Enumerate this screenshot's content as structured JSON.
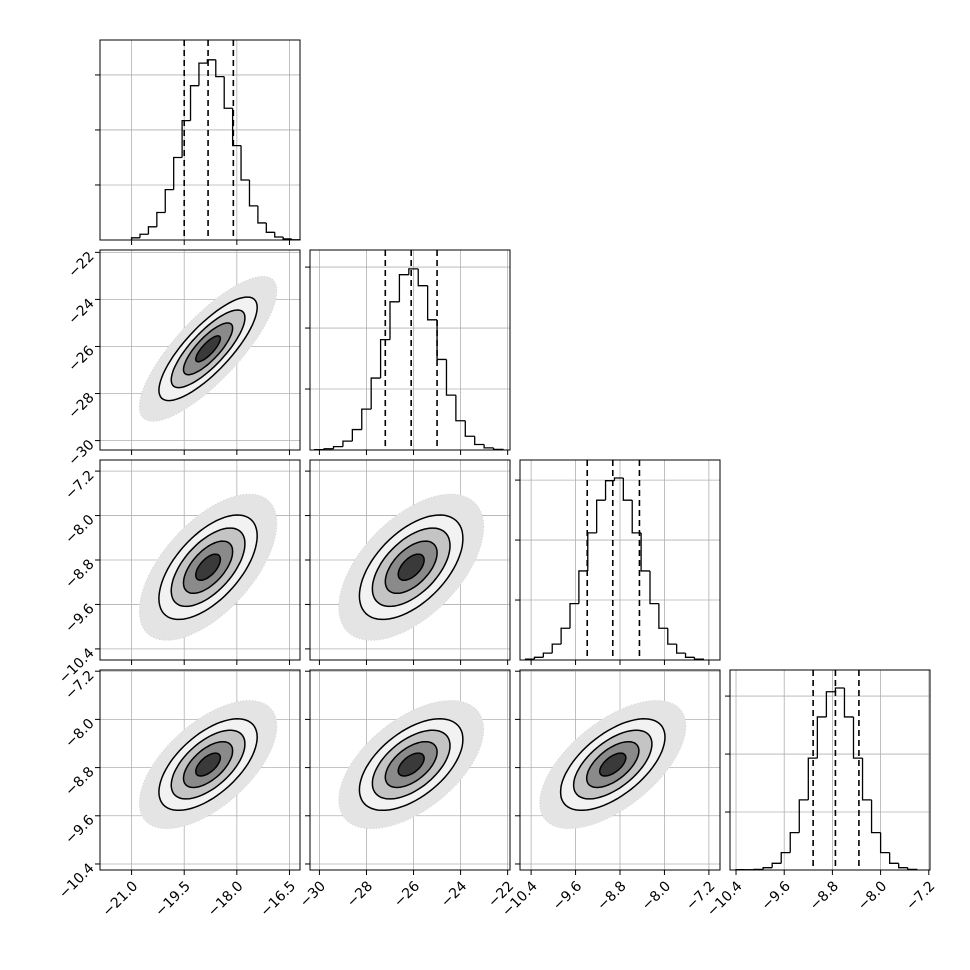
{
  "chart_data": {
    "type": "corner",
    "levels": [
      0.5,
      1,
      1.5,
      2
    ],
    "cloud": 2.8,
    "params": [
      {
        "xlim": [
          -21.9,
          -16.2
        ],
        "ticks": [
          {
            "value": -21,
            "label": "−21.0"
          },
          {
            "value": -19.5,
            "label": "−19.5"
          },
          {
            "value": -18,
            "label": "−18.0"
          },
          {
            "value": -16.5,
            "label": "−16.5"
          }
        ],
        "bins": [
          -21.0,
          -20.76,
          -20.52,
          -20.28,
          -20.04,
          -19.8,
          -19.56,
          -19.32,
          -19.08,
          -18.84,
          -18.6,
          -18.36,
          -18.12,
          -17.88,
          -17.64,
          -17.4,
          -17.16,
          -16.92,
          -16.68,
          -16.44,
          -16.2
        ],
        "counts": [
          8,
          21,
          48,
          100,
          183,
          300,
          434,
          561,
          643,
          655,
          594,
          479,
          343,
          218,
          124,
          62,
          28,
          11,
          4,
          1
        ],
        "ylim": [
          0,
          727
        ],
        "yticks": [
          200,
          400,
          600
        ],
        "quantiles": [
          -19.5,
          -18.82,
          -18.1
        ]
      },
      {
        "xlim": [
          -30.4,
          -21.9
        ],
        "ticks": [
          {
            "value": -30,
            "label": "−30"
          },
          {
            "value": -28,
            "label": "−28"
          },
          {
            "value": -26,
            "label": "−26"
          },
          {
            "value": -24,
            "label": "−24"
          },
          {
            "value": -22,
            "label": "−22"
          }
        ],
        "bins": [
          -30.2,
          -29.8,
          -29.4,
          -29.0,
          -28.6,
          -28.2,
          -27.8,
          -27.4,
          -27.0,
          -26.6,
          -26.2,
          -25.8,
          -25.4,
          -25.0,
          -24.6,
          -24.2,
          -23.8,
          -23.4,
          -23.0,
          -22.6,
          -22.2
        ],
        "counts": [
          1,
          4,
          11,
          29,
          67,
          134,
          236,
          362,
          486,
          575,
          594,
          539,
          427,
          297,
          180,
          96,
          45,
          18,
          7,
          2
        ],
        "ylim": [
          0,
          656
        ],
        "yticks": [
          200,
          400,
          600
        ],
        "quantiles": [
          -27.2,
          -26.1,
          -25.0
        ]
      },
      {
        "xlim": [
          -10.6,
          -7.0
        ],
        "ticks": [
          {
            "value": -10.4,
            "label": "−10.4"
          },
          {
            "value": -9.6,
            "label": "−9.6"
          },
          {
            "value": -8.8,
            "label": "−8.8"
          },
          {
            "value": -8.0,
            "label": "−8.0"
          },
          {
            "value": -7.2,
            "label": "−7.2"
          }
        ],
        "bins": [
          -10.5,
          -10.34,
          -10.18,
          -10.02,
          -9.86,
          -9.7,
          -9.54,
          -9.38,
          -9.22,
          -9.06,
          -8.9,
          -8.74,
          -8.58,
          -8.42,
          -8.26,
          -8.1,
          -7.94,
          -7.78,
          -7.62,
          -7.46,
          -7.3
        ],
        "counts": [
          3,
          9,
          23,
          53,
          106,
          188,
          297,
          424,
          533,
          598,
          607,
          533,
          424,
          297,
          188,
          106,
          53,
          23,
          9,
          3
        ],
        "ylim": [
          0,
          667
        ],
        "yticks": [
          200,
          400,
          600
        ],
        "quantiles": [
          -9.39,
          -8.93,
          -8.45
        ]
      },
      {
        "xlim": [
          -10.5,
          -7.18
        ],
        "ticks": [
          {
            "value": -10.4,
            "label": "−10.4"
          },
          {
            "value": -9.6,
            "label": "−9.6"
          },
          {
            "value": -8.8,
            "label": "−8.8"
          },
          {
            "value": -8.0,
            "label": "−8.0"
          },
          {
            "value": -7.2,
            "label": "−7.2"
          }
        ],
        "bins": [
          -10.4,
          -10.25,
          -10.1,
          -9.95,
          -9.8,
          -9.65,
          -9.5,
          -9.35,
          -9.2,
          -9.05,
          -8.9,
          -8.75,
          -8.6,
          -8.45,
          -8.3,
          -8.15,
          -8.0,
          -7.85,
          -7.7,
          -7.55,
          -7.4
        ],
        "counts": [
          1,
          1,
          2,
          8,
          23,
          60,
          129,
          242,
          386,
          528,
          615,
          628,
          528,
          386,
          242,
          129,
          60,
          23,
          8,
          2
        ],
        "ylim": [
          0,
          690
        ],
        "yticks": [
          200,
          400,
          600
        ],
        "quantiles": [
          -9.12,
          -8.75,
          -8.36
        ]
      }
    ],
    "pairs": [
      {
        "x": 0,
        "y": 1,
        "rho": 0.8
      },
      {
        "x": 0,
        "y": 2,
        "rho": 0.6
      },
      {
        "x": 1,
        "y": 2,
        "rho": 0.55
      },
      {
        "x": 0,
        "y": 3,
        "rho": 0.6
      },
      {
        "x": 1,
        "y": 3,
        "rho": 0.55
      },
      {
        "x": 2,
        "y": 3,
        "rho": 0.6
      }
    ]
  }
}
